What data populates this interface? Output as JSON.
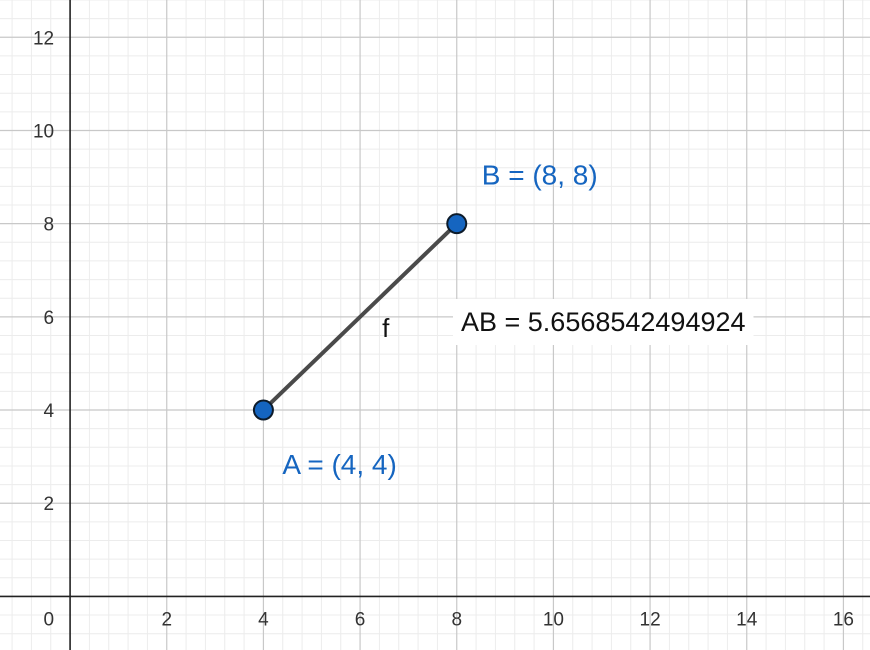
{
  "chart_data": {
    "type": "geometry",
    "xlim": [
      -1.45,
      16.55
    ],
    "ylim": [
      -1.15,
      12.8
    ],
    "grid": true,
    "x_ticks": [
      2,
      4,
      6,
      8,
      10,
      12,
      14,
      16
    ],
    "y_ticks": [
      2,
      4,
      6,
      8,
      10,
      12
    ],
    "origin_label": "0",
    "points": [
      {
        "id": "A",
        "x": 4,
        "y": 4,
        "label": "A = (4, 4)"
      },
      {
        "id": "B",
        "x": 8,
        "y": 8,
        "label": "B = (8, 8)"
      }
    ],
    "segment": {
      "name": "f",
      "from": "A",
      "to": "B"
    },
    "measurement": {
      "text": "AB = 5.6568542494924",
      "value": 5.6568542494924
    }
  },
  "colors": {
    "point_fill": "#1565c0",
    "point_stroke": "#0d1b2a",
    "segment": "#4a4a4a",
    "label": "#1565c0",
    "major_grid": "#c8c8c8",
    "minor_grid": "#ececec",
    "axis": "#222222"
  }
}
